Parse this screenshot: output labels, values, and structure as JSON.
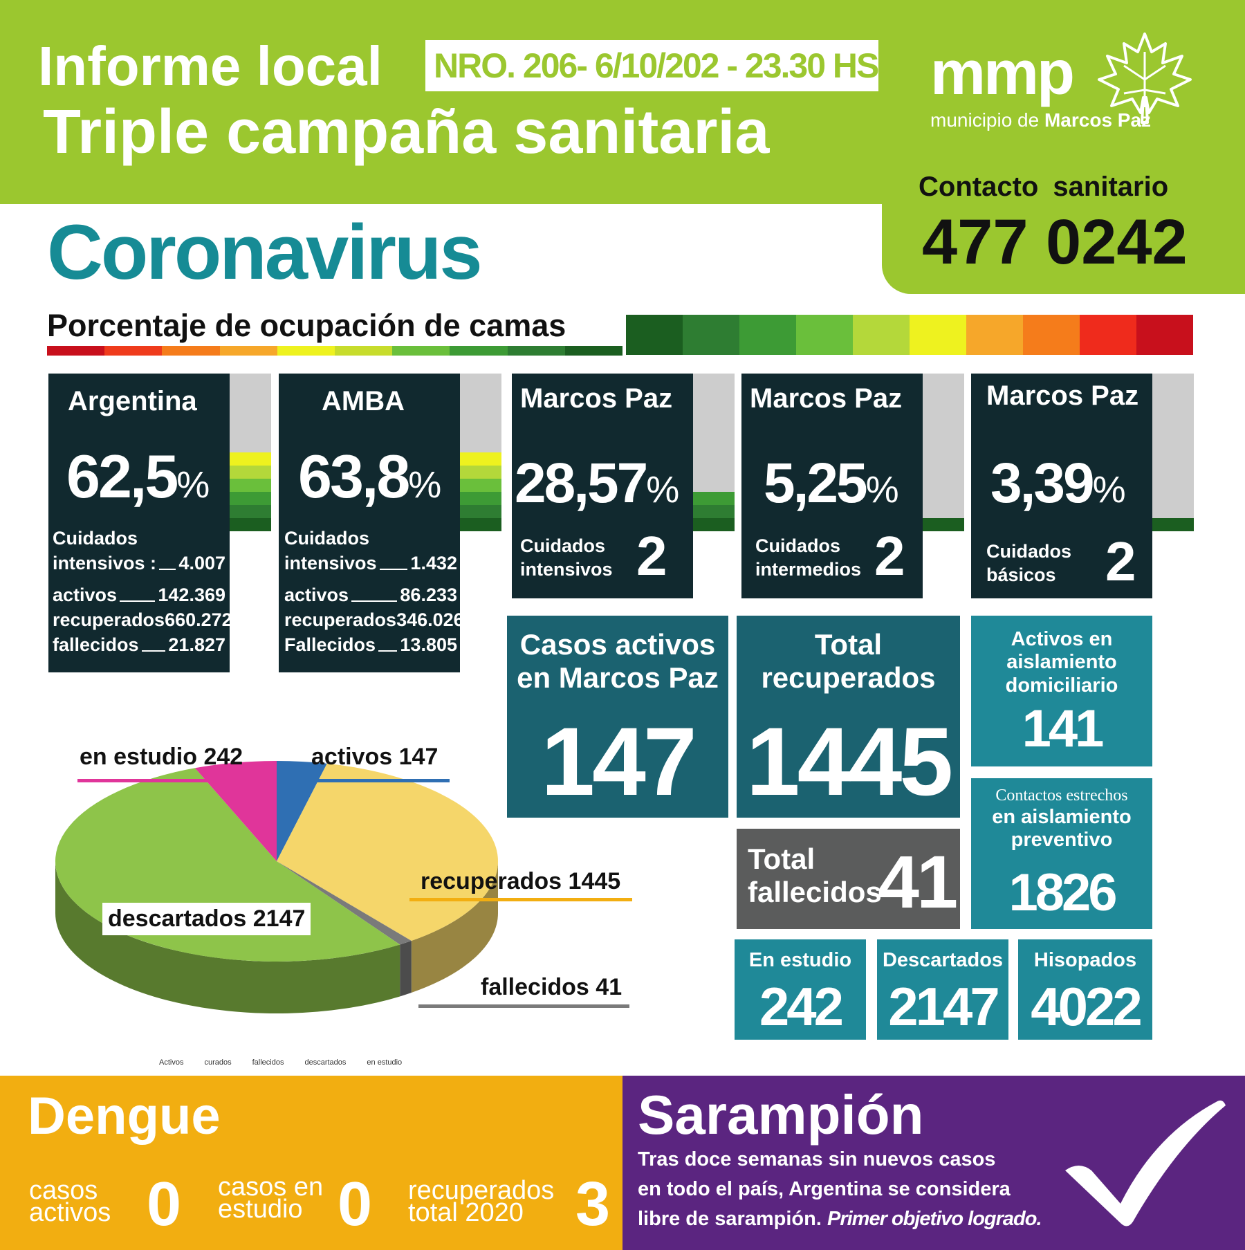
{
  "header": {
    "title_line1": "Informe local",
    "title_line2": "Triple campaña sanitaria",
    "report_number": "NRO. 206- 6/10/202 - 23.30 HS.",
    "logo_word": "mmp",
    "logo_sub_prefix": "municipio de",
    "logo_sub_name": "Marcos Paz",
    "logo_icon": "maple-leaf-icon",
    "contact_label": "Contacto sanitario",
    "contact_number": "477 0242",
    "brand_color": "#9bc72f"
  },
  "coronavirus": {
    "heading": "Coronavirus",
    "beds_heading": "Porcentaje de ocupación de camas",
    "scale_colors": [
      "#1b5e20",
      "#2e7d32",
      "#3d9b35",
      "#6abf3b",
      "#b4d83a",
      "#eef21f",
      "#f6a72a",
      "#f57c1b",
      "#ef2b1c",
      "#c8101c"
    ],
    "underline_colors": [
      "#c8101c",
      "#ef3b1c",
      "#f57c1b",
      "#f6a72a",
      "#eef21f",
      "#c7dc2c",
      "#6abf3b",
      "#3d9b35",
      "#2e7d32",
      "#1b5e20"
    ],
    "occupancy": [
      {
        "name": "Argentina",
        "pct": "62,5",
        "pct_unit": "%",
        "meter_colors": [
          "#eef21f",
          "#b4d83a",
          "#6abf3b",
          "#3d9b35",
          "#2e7d32",
          "#1b5e20"
        ],
        "lines": [
          {
            "label": "Cuidados",
            "value": ""
          },
          {
            "label": "intensivos :",
            "value": "4.007"
          },
          {
            "label": "activos",
            "value": "142.369"
          },
          {
            "label": "recuperados",
            "value": "660.272"
          },
          {
            "label": "fallecidos",
            "value": "21.827"
          }
        ]
      },
      {
        "name": "AMBA",
        "pct": "63,8",
        "pct_unit": "%",
        "meter_colors": [
          "#eef21f",
          "#b4d83a",
          "#6abf3b",
          "#3d9b35",
          "#2e7d32",
          "#1b5e20"
        ],
        "lines": [
          {
            "label": "Cuidados",
            "value": ""
          },
          {
            "label": "intensivos",
            "value": "1.432"
          },
          {
            "label": "activos",
            "value": "86.233"
          },
          {
            "label": "recuperados",
            "value": "346.026"
          },
          {
            "label": "Fallecidos",
            "value": "13.805"
          }
        ]
      },
      {
        "name": "Marcos Paz",
        "pct": "28,57",
        "pct_unit": "%",
        "care_line1": "Cuidados",
        "care_line2": "intensivos",
        "count": "2",
        "meter_colors": [
          "#3d9b35",
          "#2e7d32",
          "#1b5e20"
        ]
      },
      {
        "name": "Marcos Paz",
        "pct": "5,25",
        "pct_unit": "%",
        "care_line1": "Cuidados",
        "care_line2": "intermedios",
        "count": "2",
        "meter_colors": [
          "#1b5e20"
        ]
      },
      {
        "name": "Marcos Paz",
        "pct": "3,39",
        "pct_unit": "%",
        "care_line1": "Cuidados",
        "care_line2": "básicos",
        "count": "2",
        "meter_colors": [
          "#1b5e20"
        ]
      }
    ],
    "tiles": {
      "active": {
        "label_line1": "Casos activos",
        "label_line2": "en Marcos Paz",
        "value": "147"
      },
      "recovered": {
        "label_line1": "Total",
        "label_line2": "recuperados",
        "value": "1445"
      },
      "home_isolation": {
        "label_line1": "Activos en",
        "label_line2": "aislamiento",
        "label_line3": "domiciliario",
        "value": "141"
      },
      "deaths": {
        "label_line1": "Total",
        "label_line2": "fallecidos",
        "value": "41"
      },
      "close_contacts": {
        "label_line1": "Contactos estrechos",
        "label_line2": "en aislamiento",
        "label_line3": "preventivo",
        "value": "1826"
      },
      "under_study": {
        "label": "En estudio",
        "value": "242"
      },
      "discarded": {
        "label": "Descartados",
        "value": "2147"
      },
      "swabbed": {
        "label": "Hisopados",
        "value": "4022"
      }
    },
    "pie": {
      "labels": {
        "under_study": "en estudio 242",
        "active": "activos 147",
        "recovered": "recuperados 1445",
        "discarded": "descartados 2147",
        "deceased": "fallecidos 41"
      },
      "legend": [
        "Activos",
        "curados",
        "fallecidos",
        "descartados",
        "en estudio"
      ],
      "colors": {
        "active": "#2f6fb3",
        "recovered": "#f5d66a",
        "deceased": "#7a7a7a",
        "discarded": "#8ec44a",
        "under_study": "#e0359a"
      }
    }
  },
  "chart_data": {
    "type": "pie",
    "categories": [
      "activos",
      "recuperados",
      "fallecidos",
      "descartados",
      "en estudio"
    ],
    "values": [
      147,
      1445,
      41,
      2147,
      242
    ],
    "legend": [
      "Activos",
      "curados",
      "fallecidos",
      "descartados",
      "en estudio"
    ],
    "legend_placement": "bottom"
  },
  "dengue": {
    "title": "Dengue",
    "active_label_1": "casos",
    "active_label_2": "activos",
    "active_value": "0",
    "study_label_1": "casos en",
    "study_label_2": "estudio",
    "study_value": "0",
    "recovered_label_1": "recuperados",
    "recovered_label_2": "total 2020",
    "recovered_value": "3"
  },
  "measles": {
    "title": "Sarampión",
    "line1": "Tras doce semanas sin nuevos casos",
    "line2": "en todo el país, Argentina se considera",
    "line3": "libre de sarampión.",
    "line3_bold": "Primer objetivo logrado.",
    "icon": "check-icon"
  }
}
